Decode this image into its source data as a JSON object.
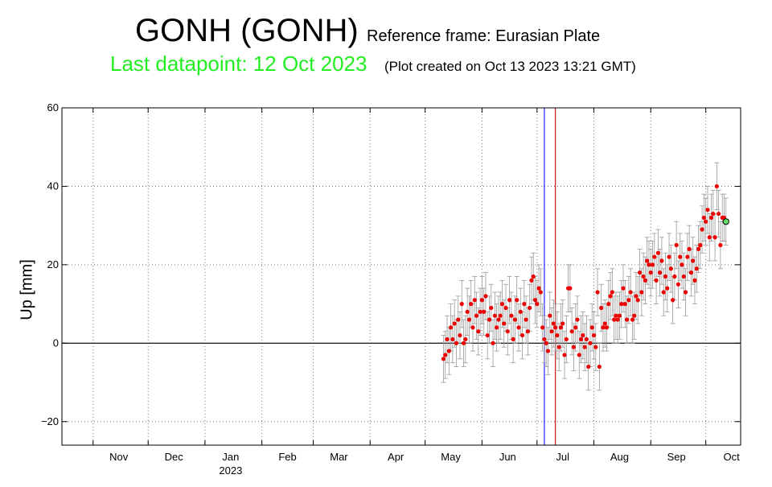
{
  "header": {
    "station": "GONH (GONH)",
    "reference_frame": "Reference frame: Eurasian Plate",
    "last_datapoint": "Last datapoint: 12 Oct 2023",
    "plot_created": "(Plot created on Oct 13 2023 13:21 GMT)"
  },
  "colors": {
    "last_datapoint_text": "#22ee22",
    "points": "#ee0000",
    "error_bars": "#999999",
    "last_point_fill": "#66dd66",
    "blue_line": "#3333ff",
    "red_line": "#cc2222",
    "zero_line": "#000000"
  },
  "chart_data": {
    "type": "scatter",
    "title": "GONH (GONH)",
    "ylabel": "Up [mm]",
    "xlabel": "",
    "ylim": [
      -26,
      60
    ],
    "xlim": [
      "2022-10-15",
      "2023-10-20"
    ],
    "yticks": [
      -20,
      0,
      20,
      40,
      60
    ],
    "month_ticks": [
      {
        "label": "Nov",
        "date": "2022-11-01"
      },
      {
        "label": "Dec",
        "date": "2022-12-01"
      },
      {
        "label": "Jan",
        "date": "2023-01-01"
      },
      {
        "label": "Feb",
        "date": "2023-02-01"
      },
      {
        "label": "Mar",
        "date": "2023-03-01"
      },
      {
        "label": "Apr",
        "date": "2023-04-01"
      },
      {
        "label": "May",
        "date": "2023-05-01"
      },
      {
        "label": "Jun",
        "date": "2023-06-01"
      },
      {
        "label": "Jul",
        "date": "2023-07-01"
      },
      {
        "label": "Aug",
        "date": "2023-08-01"
      },
      {
        "label": "Sep",
        "date": "2023-09-01"
      },
      {
        "label": "Oct",
        "date": "2023-10-01"
      }
    ],
    "year_label": "2023",
    "grid": true,
    "vertical_lines": [
      {
        "date": "2023-07-05",
        "color": "blue"
      },
      {
        "date": "2023-07-11",
        "color": "red"
      }
    ],
    "error_bar_mm": 6,
    "last_point": {
      "date": "2023-10-12",
      "value": 31
    },
    "series": [
      {
        "points": [
          [
            "2023-05-11",
            -4
          ],
          [
            "2023-05-12",
            -3
          ],
          [
            "2023-05-13",
            1
          ],
          [
            "2023-05-14",
            -2
          ],
          [
            "2023-05-15",
            4
          ],
          [
            "2023-05-16",
            1
          ],
          [
            "2023-05-17",
            5
          ],
          [
            "2023-05-18",
            0
          ],
          [
            "2023-05-19",
            6
          ],
          [
            "2023-05-20",
            2
          ],
          [
            "2023-05-21",
            10
          ],
          [
            "2023-05-22",
            0
          ],
          [
            "2023-05-23",
            1
          ],
          [
            "2023-05-24",
            8
          ],
          [
            "2023-05-25",
            6
          ],
          [
            "2023-05-26",
            10
          ],
          [
            "2023-05-27",
            4
          ],
          [
            "2023-05-28",
            11
          ],
          [
            "2023-05-29",
            7
          ],
          [
            "2023-05-30",
            3
          ],
          [
            "2023-05-31",
            8
          ],
          [
            "2023-06-01",
            11
          ],
          [
            "2023-06-02",
            8
          ],
          [
            "2023-06-03",
            12
          ],
          [
            "2023-06-04",
            2
          ],
          [
            "2023-06-05",
            6
          ],
          [
            "2023-06-06",
            9
          ],
          [
            "2023-06-07",
            0
          ],
          [
            "2023-06-08",
            7
          ],
          [
            "2023-06-09",
            4
          ],
          [
            "2023-06-10",
            6
          ],
          [
            "2023-06-11",
            7
          ],
          [
            "2023-06-12",
            10
          ],
          [
            "2023-06-13",
            5
          ],
          [
            "2023-06-14",
            9
          ],
          [
            "2023-06-15",
            3
          ],
          [
            "2023-06-16",
            11
          ],
          [
            "2023-06-17",
            7
          ],
          [
            "2023-06-18",
            1
          ],
          [
            "2023-06-19",
            6
          ],
          [
            "2023-06-20",
            11
          ],
          [
            "2023-06-21",
            4
          ],
          [
            "2023-06-22",
            8
          ],
          [
            "2023-06-23",
            2
          ],
          [
            "2023-06-24",
            10
          ],
          [
            "2023-06-25",
            6
          ],
          [
            "2023-06-26",
            3
          ],
          [
            "2023-06-27",
            9
          ],
          [
            "2023-06-28",
            16
          ],
          [
            "2023-06-29",
            17
          ],
          [
            "2023-06-30",
            11
          ],
          [
            "2023-07-01",
            10
          ],
          [
            "2023-07-02",
            14
          ],
          [
            "2023-07-03",
            13
          ],
          [
            "2023-07-04",
            4
          ],
          [
            "2023-07-05",
            1
          ],
          [
            "2023-07-06",
            0
          ],
          [
            "2023-07-07",
            -2
          ],
          [
            "2023-07-08",
            7
          ],
          [
            "2023-07-09",
            3
          ],
          [
            "2023-07-10",
            5
          ],
          [
            "2023-07-11",
            4
          ],
          [
            "2023-07-12",
            2
          ],
          [
            "2023-07-13",
            -1
          ],
          [
            "2023-07-14",
            4
          ],
          [
            "2023-07-15",
            5
          ],
          [
            "2023-07-16",
            -3
          ],
          [
            "2023-07-17",
            1
          ],
          [
            "2023-07-18",
            14
          ],
          [
            "2023-07-19",
            14
          ],
          [
            "2023-07-20",
            3
          ],
          [
            "2023-07-21",
            -1
          ],
          [
            "2023-07-22",
            4
          ],
          [
            "2023-07-23",
            6
          ],
          [
            "2023-07-24",
            -3
          ],
          [
            "2023-07-25",
            1
          ],
          [
            "2023-07-26",
            2
          ],
          [
            "2023-07-27",
            -1
          ],
          [
            "2023-07-28",
            1
          ],
          [
            "2023-07-29",
            -6
          ],
          [
            "2023-07-30",
            0
          ],
          [
            "2023-07-31",
            4
          ],
          [
            "2023-08-01",
            2
          ],
          [
            "2023-08-02",
            -1
          ],
          [
            "2023-08-03",
            13
          ],
          [
            "2023-08-04",
            -6
          ],
          [
            "2023-08-05",
            9
          ],
          [
            "2023-08-06",
            4
          ],
          [
            "2023-08-07",
            5
          ],
          [
            "2023-08-08",
            4
          ],
          [
            "2023-08-09",
            10
          ],
          [
            "2023-08-10",
            12
          ],
          [
            "2023-08-11",
            13
          ],
          [
            "2023-08-12",
            6
          ],
          [
            "2023-08-13",
            7
          ],
          [
            "2023-08-14",
            6
          ],
          [
            "2023-08-15",
            7
          ],
          [
            "2023-08-16",
            10
          ],
          [
            "2023-08-17",
            14
          ],
          [
            "2023-08-18",
            10
          ],
          [
            "2023-08-19",
            6
          ],
          [
            "2023-08-20",
            11
          ],
          [
            "2023-08-21",
            13
          ],
          [
            "2023-08-22",
            6
          ],
          [
            "2023-08-23",
            7
          ],
          [
            "2023-08-24",
            12
          ],
          [
            "2023-08-25",
            11
          ],
          [
            "2023-08-26",
            18
          ],
          [
            "2023-08-27",
            13
          ],
          [
            "2023-08-28",
            17
          ],
          [
            "2023-08-29",
            16
          ],
          [
            "2023-08-30",
            21
          ],
          [
            "2023-08-31",
            20
          ],
          [
            "2023-09-01",
            18
          ],
          [
            "2023-09-02",
            20
          ],
          [
            "2023-09-03",
            22
          ],
          [
            "2023-09-04",
            16
          ],
          [
            "2023-09-05",
            23
          ],
          [
            "2023-09-06",
            18
          ],
          [
            "2023-09-07",
            21
          ],
          [
            "2023-09-08",
            13
          ],
          [
            "2023-09-09",
            17
          ],
          [
            "2023-09-10",
            14
          ],
          [
            "2023-09-11",
            22
          ],
          [
            "2023-09-12",
            19
          ],
          [
            "2023-09-13",
            11
          ],
          [
            "2023-09-14",
            17
          ],
          [
            "2023-09-15",
            25
          ],
          [
            "2023-09-16",
            15
          ],
          [
            "2023-09-17",
            22
          ],
          [
            "2023-09-18",
            20
          ],
          [
            "2023-09-19",
            17
          ],
          [
            "2023-09-20",
            13
          ],
          [
            "2023-09-21",
            22
          ],
          [
            "2023-09-22",
            24
          ],
          [
            "2023-09-23",
            18
          ],
          [
            "2023-09-24",
            21
          ],
          [
            "2023-09-25",
            16
          ],
          [
            "2023-09-26",
            19
          ],
          [
            "2023-09-27",
            24
          ],
          [
            "2023-09-28",
            25
          ],
          [
            "2023-09-29",
            29
          ],
          [
            "2023-09-30",
            32
          ],
          [
            "2023-10-01",
            31
          ],
          [
            "2023-10-02",
            34
          ],
          [
            "2023-10-03",
            27
          ],
          [
            "2023-10-04",
            32
          ],
          [
            "2023-10-05",
            33
          ],
          [
            "2023-10-06",
            27
          ],
          [
            "2023-10-07",
            40
          ],
          [
            "2023-10-08",
            33
          ],
          [
            "2023-10-09",
            25
          ],
          [
            "2023-10-10",
            32
          ],
          [
            "2023-10-11",
            32
          ],
          [
            "2023-10-12",
            31
          ]
        ]
      }
    ]
  }
}
